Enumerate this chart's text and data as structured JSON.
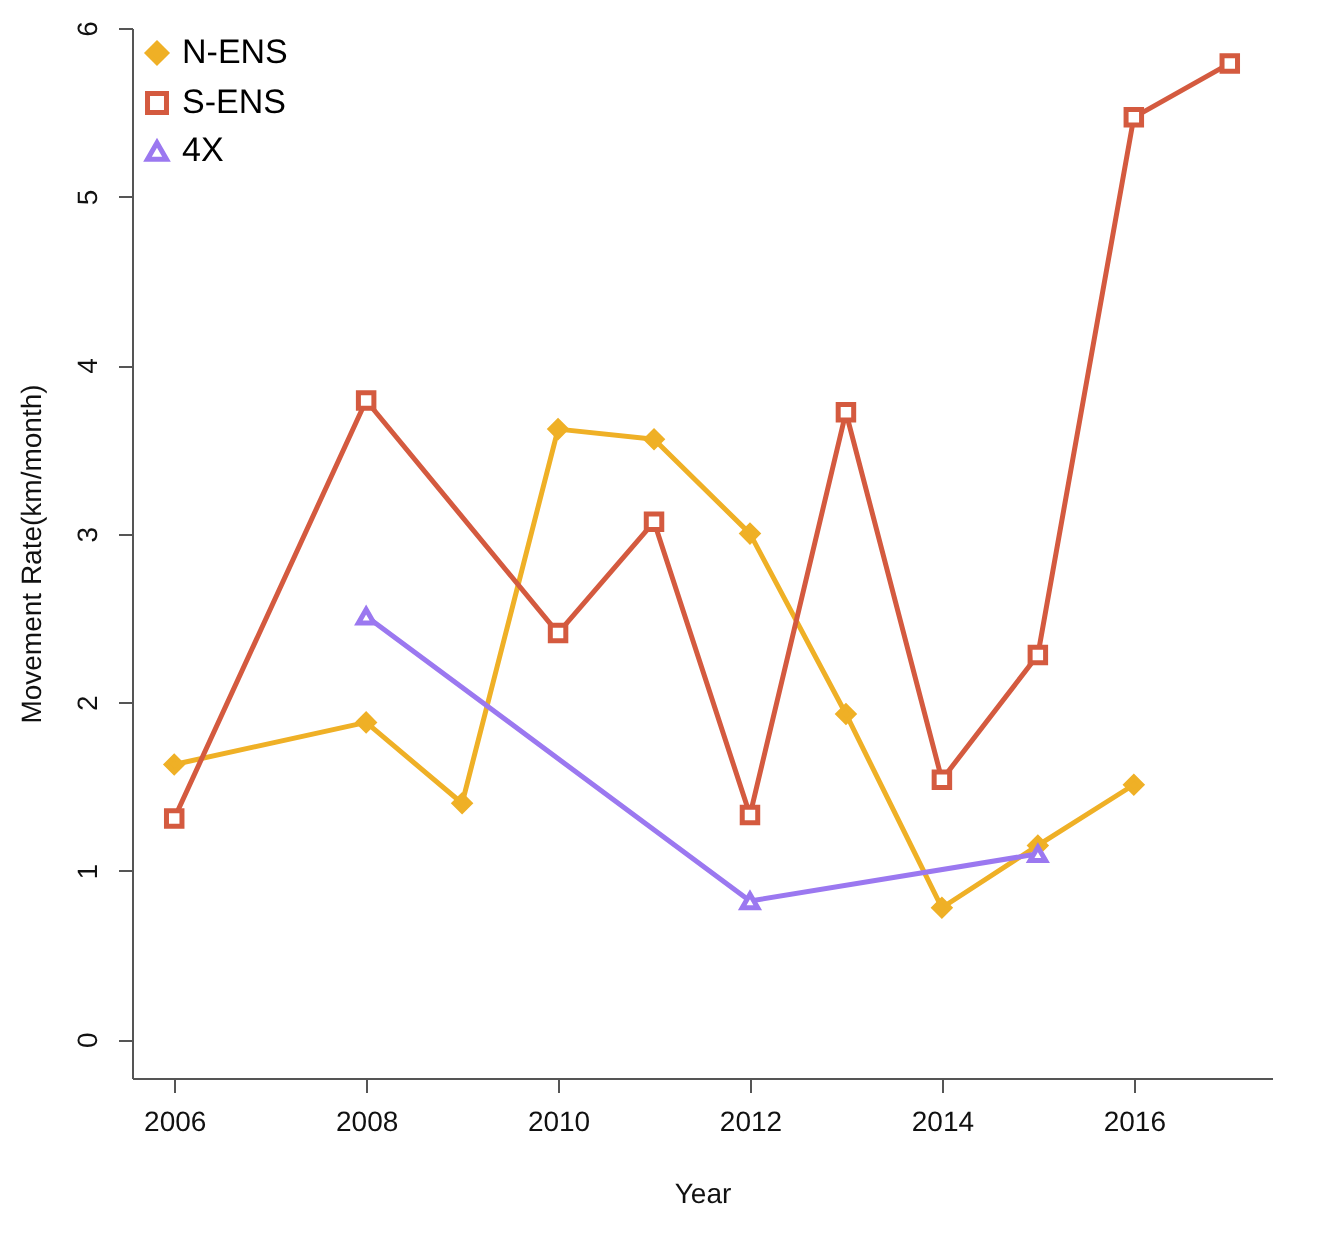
{
  "chart_data": {
    "type": "line",
    "xlabel": "Year",
    "ylabel": "Movement Rate(km/month)",
    "xlim": [
      2005.56,
      2017.44
    ],
    "ylim": [
      -0.23,
      6
    ],
    "xticks": [
      2006,
      2008,
      2010,
      2012,
      2014,
      2016
    ],
    "yticks": [
      0,
      1,
      2,
      3,
      4,
      5,
      6
    ],
    "grid": false,
    "legend": "top left",
    "line_style": "solid",
    "series": [
      {
        "name": "N-ENS",
        "color": "#efb026",
        "marker": "diamond",
        "x": [
          2006,
          2008,
          2009,
          2010,
          2011,
          2012,
          2013,
          2014,
          2015,
          2016
        ],
        "values": [
          1.63,
          1.88,
          1.4,
          3.62,
          3.56,
          3.0,
          1.93,
          0.78,
          1.15,
          1.51
        ]
      },
      {
        "name": "S-ENS",
        "color": "#d45a3f",
        "marker": "square",
        "x": [
          2006,
          2008,
          2010,
          2011,
          2012,
          2013,
          2014,
          2015,
          2016,
          2017
        ],
        "values": [
          1.31,
          3.79,
          2.41,
          3.07,
          1.33,
          3.72,
          1.54,
          2.28,
          5.47,
          5.79
        ]
      },
      {
        "name": "4X",
        "color": "#9b78f0",
        "marker": "triangle",
        "x": [
          2008,
          2012,
          2015
        ],
        "values": [
          2.51,
          0.82,
          1.1
        ]
      }
    ]
  }
}
